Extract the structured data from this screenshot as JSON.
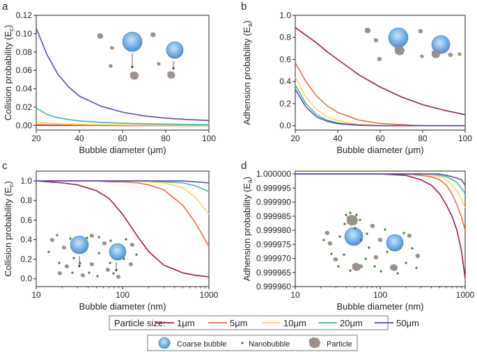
{
  "colors": {
    "1um": "#a0174e",
    "5um": "#ee6a45",
    "10um": "#fbd35c",
    "20um": "#43b89c",
    "50um": "#5d4aa6",
    "bubble": "#4b8fd4",
    "bubble_light": "#c8e4fb",
    "particle": "#9c918a",
    "nanobubble": "#3a7a2a"
  },
  "chart_data": [
    {
      "panel": "a",
      "type": "line",
      "xlabel": "Bubble diameter (μm)",
      "ylabel_main": "Collision probability (E",
      "ylabel_sub": "c",
      "xscale": "linear",
      "xlim": [
        20,
        100
      ],
      "ylim": [
        -0.005,
        0.12
      ],
      "xticks": [
        20,
        40,
        60,
        80,
        100
      ],
      "xtick_labels": [
        "20",
        "40",
        "60",
        "80",
        "100"
      ],
      "yticks": [
        0.0,
        0.02,
        0.04,
        0.06,
        0.08,
        0.1,
        0.12
      ],
      "ytick_labels": [
        "0.00",
        "0.02",
        "0.04",
        "0.06",
        "0.08",
        "0.10",
        "0.12"
      ],
      "x": [
        20,
        25,
        30,
        35,
        40,
        50,
        60,
        70,
        80,
        90,
        100
      ],
      "series": [
        {
          "name": "1μm",
          "values": [
            0.0002,
            0.00015,
            0.0001,
            0.0001,
            0.0001,
            0.0001,
            0.0,
            0.0,
            0.0,
            0.0,
            0.0
          ]
        },
        {
          "name": "5μm",
          "values": [
            0.001,
            0.0008,
            0.0006,
            0.0005,
            0.0004,
            0.0003,
            0.0002,
            0.0002,
            0.0001,
            0.0001,
            0.0001
          ]
        },
        {
          "name": "10μm",
          "values": [
            0.004,
            0.0028,
            0.002,
            0.0016,
            0.0013,
            0.0009,
            0.0007,
            0.0005,
            0.0004,
            0.0004,
            0.0003
          ]
        },
        {
          "name": "20μm",
          "values": [
            0.019,
            0.012,
            0.0085,
            0.0065,
            0.005,
            0.0034,
            0.0025,
            0.0019,
            0.0015,
            0.0012,
            0.001
          ]
        },
        {
          "name": "50μm",
          "values": [
            0.106,
            0.077,
            0.056,
            0.042,
            0.032,
            0.021,
            0.0145,
            0.0105,
            0.008,
            0.0065,
            0.0055
          ]
        }
      ]
    },
    {
      "panel": "b",
      "type": "line",
      "xlabel": "Bubble diameter (μm)",
      "ylabel_main": "Adhension probability (E",
      "ylabel_sub": "a",
      "xscale": "linear",
      "xlim": [
        20,
        100
      ],
      "ylim": [
        -0.04,
        1.0
      ],
      "xticks": [
        20,
        40,
        60,
        80,
        100
      ],
      "xtick_labels": [
        "20",
        "40",
        "60",
        "80",
        "100"
      ],
      "yticks": [
        0.0,
        0.2,
        0.4,
        0.6,
        0.8,
        1.0
      ],
      "ytick_labels": [
        "0.0",
        "0.2",
        "0.4",
        "0.6",
        "0.8",
        "1.0"
      ],
      "x": [
        20,
        25,
        30,
        35,
        40,
        50,
        60,
        70,
        80,
        90,
        100
      ],
      "series": [
        {
          "name": "1μm",
          "values": [
            0.89,
            0.82,
            0.75,
            0.67,
            0.6,
            0.46,
            0.35,
            0.26,
            0.19,
            0.14,
            0.1
          ]
        },
        {
          "name": "5μm",
          "values": [
            0.57,
            0.4,
            0.27,
            0.18,
            0.12,
            0.05,
            0.02,
            0.01,
            0.0,
            0.0,
            0.0
          ]
        },
        {
          "name": "10μm",
          "values": [
            0.44,
            0.26,
            0.15,
            0.08,
            0.045,
            0.012,
            0.003,
            0.001,
            0.0,
            0.0,
            0.0
          ]
        },
        {
          "name": "20μm",
          "values": [
            0.37,
            0.2,
            0.1,
            0.05,
            0.025,
            0.005,
            0.001,
            0.0,
            0.0,
            0.0,
            0.0
          ]
        },
        {
          "name": "50μm",
          "values": [
            0.33,
            0.17,
            0.08,
            0.04,
            0.018,
            0.003,
            0.0,
            0.0,
            0.0,
            0.0,
            0.0
          ]
        }
      ]
    },
    {
      "panel": "c",
      "type": "line",
      "xlabel": "Bubble diameter (nm)",
      "ylabel_main": "Collision probability (E",
      "ylabel_sub": "c",
      "xscale": "log",
      "xlim": [
        10,
        1000
      ],
      "ylim": [
        -0.08,
        1.1
      ],
      "xticks": [
        10,
        100,
        1000
      ],
      "xtick_labels": [
        "10",
        "100",
        "1000"
      ],
      "yticks": [
        0.0,
        0.2,
        0.4,
        0.6,
        0.8,
        1.0
      ],
      "ytick_labels": [
        "0.0",
        "0.2",
        "0.4",
        "0.6",
        "0.8",
        "1.0"
      ],
      "x": [
        10,
        20,
        30,
        50,
        70,
        100,
        150,
        200,
        300,
        500,
        700,
        1000
      ],
      "series": [
        {
          "name": "1μm",
          "values": [
            1.0,
            0.98,
            0.96,
            0.9,
            0.82,
            0.66,
            0.43,
            0.28,
            0.14,
            0.06,
            0.035,
            0.02
          ]
        },
        {
          "name": "5μm",
          "values": [
            1.0,
            1.0,
            1.0,
            1.0,
            0.99,
            0.99,
            0.98,
            0.96,
            0.91,
            0.75,
            0.57,
            0.33
          ]
        },
        {
          "name": "10μm",
          "values": [
            1.0,
            1.0,
            1.0,
            1.0,
            1.0,
            1.0,
            1.0,
            0.99,
            0.98,
            0.93,
            0.83,
            0.66
          ]
        },
        {
          "name": "20μm",
          "values": [
            1.0,
            1.0,
            1.0,
            1.0,
            1.0,
            1.0,
            1.0,
            1.0,
            0.99,
            0.98,
            0.95,
            0.89
          ]
        },
        {
          "name": "50μm",
          "values": [
            1.0,
            1.0,
            1.0,
            1.0,
            1.0,
            1.0,
            1.0,
            1.0,
            1.0,
            1.0,
            0.99,
            0.98
          ]
        }
      ]
    },
    {
      "panel": "d",
      "type": "line",
      "xlabel": "Bubble diameter (nm)",
      "ylabel_main": "Adhension probability (E",
      "ylabel_sub": "a",
      "xscale": "log",
      "xlim": [
        10,
        1000
      ],
      "ylim": [
        0.99996,
        1.000001
      ],
      "xticks": [
        10,
        100,
        1000
      ],
      "xtick_labels": [
        "10",
        "100",
        "1000"
      ],
      "yticks": [
        0.99996,
        0.999965,
        0.99997,
        0.999975,
        0.99998,
        0.999985,
        0.99999,
        0.999995,
        1.0
      ],
      "ytick_labels": [
        "0.999960",
        "0.999965",
        "0.999970",
        "0.999975",
        "0.999980",
        "0.999985",
        "0.999990",
        "0.999995",
        "1.000000"
      ],
      "x": [
        10,
        100,
        200,
        300,
        400,
        500,
        600,
        700,
        800,
        900,
        1000
      ],
      "series": [
        {
          "name": "1μm",
          "values": [
            1.0,
            1.0,
            0.9999995,
            0.999998,
            0.999996,
            0.999993,
            0.999989,
            0.999985,
            0.99998,
            0.999973,
            0.999963
          ]
        },
        {
          "name": "5μm",
          "values": [
            1.0,
            1.0,
            1.0,
            0.9999995,
            0.999999,
            0.999998,
            0.999996,
            0.999993,
            0.999989,
            0.999985,
            0.99998
          ]
        },
        {
          "name": "10μm",
          "values": [
            1.0,
            1.0,
            1.0,
            1.0,
            0.9999995,
            0.999999,
            0.999998,
            0.999996,
            0.999994,
            0.999991,
            0.999988
          ]
        },
        {
          "name": "20μm",
          "values": [
            1.0,
            1.0,
            1.0,
            1.0,
            1.0,
            0.9999995,
            0.999999,
            0.999998,
            0.999997,
            0.999995,
            0.999993
          ]
        },
        {
          "name": "50μm",
          "values": [
            1.0,
            1.0,
            1.0,
            1.0,
            1.0,
            1.0,
            0.9999995,
            0.999999,
            0.9999985,
            0.999998,
            0.999996
          ]
        }
      ]
    }
  ],
  "legend": {
    "title": "Particle size:",
    "entries": [
      "1μm",
      "5μm",
      "10μm",
      "20μm",
      "50μm"
    ],
    "symbols": [
      "Coarse bubble",
      "Nanobubble",
      "Particle"
    ]
  }
}
